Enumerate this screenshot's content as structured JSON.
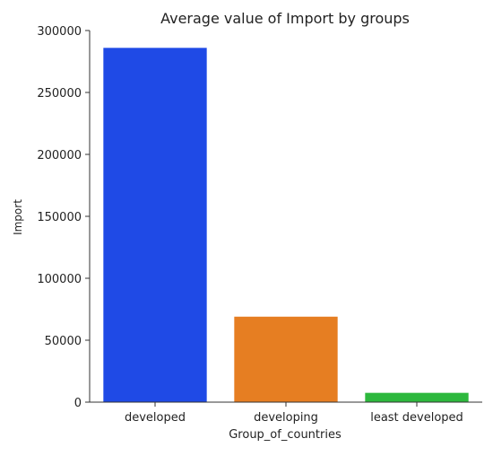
{
  "chart_data": {
    "type": "bar",
    "title": "Average value of Import by groups",
    "xlabel": "Group_of_countries",
    "ylabel": "Import",
    "categories": [
      "developed",
      "developing",
      "least developed"
    ],
    "values": [
      286000,
      69000,
      7500
    ],
    "colors": [
      "#1f4ae6",
      "#e67e22",
      "#2db83d"
    ],
    "ylim": [
      0,
      300000
    ],
    "yticks": [
      0,
      50000,
      100000,
      150000,
      200000,
      250000,
      300000
    ],
    "ytick_labels": [
      "0",
      "50000",
      "100000",
      "150000",
      "200000",
      "250000",
      "300000"
    ],
    "grid": false,
    "legend": "none"
  }
}
